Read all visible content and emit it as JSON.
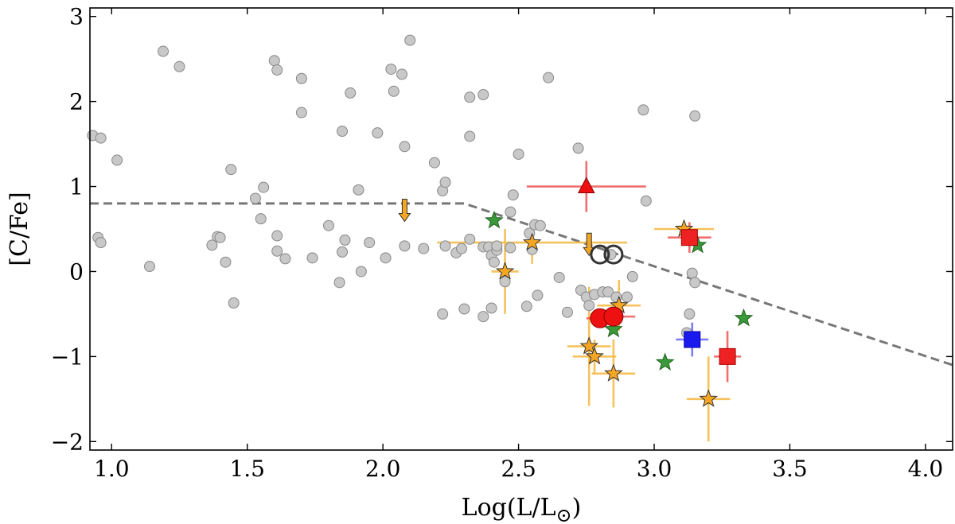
{
  "chart_data": {
    "type": "scatter",
    "title": "",
    "xlabel": "Log(L/L",
    "xlabel_sub": "⊙",
    "xlabel_close": ")",
    "ylabel": "[C/Fe]",
    "xlim": [
      0.92,
      4.1
    ],
    "ylim": [
      -2.1,
      3.1
    ],
    "grid": false,
    "x_ticks": [
      {
        "value": 1.0,
        "label": "1.0"
      },
      {
        "value": 1.5,
        "label": "1.5"
      },
      {
        "value": 2.0,
        "label": "2.0"
      },
      {
        "value": 2.5,
        "label": "2.5"
      },
      {
        "value": 3.0,
        "label": "3.0"
      },
      {
        "value": 3.5,
        "label": "3.5"
      },
      {
        "value": 4.0,
        "label": "4.0"
      }
    ],
    "y_ticks": [
      {
        "value": 3,
        "label": "3"
      },
      {
        "value": 2,
        "label": "2"
      },
      {
        "value": 1,
        "label": "1"
      },
      {
        "value": 0,
        "label": "0"
      },
      {
        "value": -1,
        "label": "−1"
      },
      {
        "value": -2,
        "label": "−2"
      }
    ],
    "boundary_line": {
      "name": "dashed-boundary",
      "points": [
        [
          0.92,
          0.8
        ],
        [
          2.3,
          0.8
        ],
        [
          4.1,
          -1.1
        ]
      ],
      "color": "#777777"
    },
    "series": [
      {
        "name": "comparison-sample",
        "marker": "circle",
        "color": "#c8c8c8",
        "edge": "#888888",
        "points": [
          [
            0.93,
            1.6
          ],
          [
            0.96,
            1.57
          ],
          [
            1.02,
            1.31
          ],
          [
            0.95,
            0.4
          ],
          [
            0.96,
            0.34
          ],
          [
            1.19,
            2.59
          ],
          [
            1.25,
            2.41
          ],
          [
            1.14,
            0.06
          ],
          [
            1.44,
            1.2
          ],
          [
            1.39,
            0.41
          ],
          [
            1.4,
            0.4
          ],
          [
            1.37,
            0.31
          ],
          [
            1.42,
            0.11
          ],
          [
            1.45,
            -0.37
          ],
          [
            1.53,
            0.86
          ],
          [
            1.56,
            0.99
          ],
          [
            1.55,
            0.62
          ],
          [
            1.6,
            2.48
          ],
          [
            1.61,
            2.37
          ],
          [
            1.61,
            0.42
          ],
          [
            1.61,
            0.24
          ],
          [
            1.64,
            0.15
          ],
          [
            1.7,
            2.27
          ],
          [
            1.7,
            1.87
          ],
          [
            1.74,
            0.16
          ],
          [
            1.8,
            0.54
          ],
          [
            1.84,
            -0.13
          ],
          [
            1.85,
            0.23
          ],
          [
            1.86,
            0.37
          ],
          [
            1.85,
            1.65
          ],
          [
            1.88,
            2.1
          ],
          [
            1.91,
            0.96
          ],
          [
            1.92,
            0.0
          ],
          [
            1.95,
            0.34
          ],
          [
            1.98,
            1.63
          ],
          [
            2.01,
            0.16
          ],
          [
            2.03,
            2.38
          ],
          [
            2.04,
            2.12
          ],
          [
            2.07,
            2.32
          ],
          [
            2.08,
            1.47
          ],
          [
            2.08,
            0.3
          ],
          [
            2.1,
            2.72
          ],
          [
            2.15,
            0.27
          ],
          [
            2.19,
            1.28
          ],
          [
            2.22,
            0.95
          ],
          [
            2.23,
            1.05
          ],
          [
            2.23,
            0.3
          ],
          [
            2.22,
            -0.5
          ],
          [
            2.27,
            0.22
          ],
          [
            2.29,
            0.27
          ],
          [
            2.32,
            2.05
          ],
          [
            2.32,
            1.59
          ],
          [
            2.32,
            0.38
          ],
          [
            2.3,
            -0.44
          ],
          [
            2.37,
            2.08
          ],
          [
            2.37,
            0.29
          ],
          [
            2.37,
            -0.53
          ],
          [
            2.39,
            0.29
          ],
          [
            2.4,
            0.19
          ],
          [
            2.4,
            -0.43
          ],
          [
            2.41,
            0.11
          ],
          [
            2.42,
            0.25
          ],
          [
            2.42,
            0.3
          ],
          [
            2.45,
            -0.12
          ],
          [
            2.47,
            0.28
          ],
          [
            2.47,
            0.7
          ],
          [
            2.48,
            0.9
          ],
          [
            2.5,
            1.38
          ],
          [
            2.53,
            -0.41
          ],
          [
            2.54,
            0.45
          ],
          [
            2.55,
            0.26
          ],
          [
            2.56,
            0.55
          ],
          [
            2.57,
            -0.28
          ],
          [
            2.58,
            0.54
          ],
          [
            2.61,
            2.28
          ],
          [
            2.65,
            -0.07
          ],
          [
            2.68,
            -0.48
          ],
          [
            2.72,
            1.45
          ],
          [
            2.73,
            -0.22
          ],
          [
            2.75,
            -0.3
          ],
          [
            2.76,
            -0.4
          ],
          [
            2.78,
            -0.27
          ],
          [
            2.81,
            -0.24
          ],
          [
            2.83,
            -0.24
          ],
          [
            2.84,
            0.2
          ],
          [
            2.86,
            -0.3
          ],
          [
            2.9,
            -0.3
          ],
          [
            2.92,
            -0.06
          ],
          [
            2.96,
            1.9
          ],
          [
            2.97,
            0.83
          ],
          [
            3.14,
            -0.02
          ],
          [
            3.15,
            -0.13
          ],
          [
            3.13,
            -0.5
          ],
          [
            3.12,
            -0.72
          ],
          [
            3.15,
            1.83
          ]
        ]
      },
      {
        "name": "green-stars",
        "marker": "star",
        "color": "#3a9a3a",
        "edge": "#1f5f1f",
        "points": [
          [
            2.41,
            0.6
          ],
          [
            2.85,
            -0.68
          ],
          [
            3.04,
            -1.07
          ],
          [
            3.16,
            0.31
          ],
          [
            3.33,
            -0.55
          ]
        ]
      },
      {
        "name": "orange-stars",
        "marker": "star",
        "color": "#f5a623",
        "edge": "#333333",
        "errcolor": "#f5b840",
        "points": [
          {
            "x": 2.45,
            "y": 0.0,
            "xerr": 0.05,
            "yerr": 0.5
          },
          {
            "x": 2.55,
            "y": 0.34,
            "xerr": 0.35,
            "yerr": 0.25
          },
          {
            "x": 2.76,
            "y": -0.88,
            "xerr": 0.08,
            "yerr": 0.7
          },
          {
            "x": 2.78,
            "y": -1.0,
            "xerr": 0.08,
            "yerr": 0.2
          },
          {
            "x": 2.85,
            "y": -1.2,
            "xerr": 0.08,
            "yerr": 0.4
          },
          {
            "x": 2.87,
            "y": -0.4,
            "xerr": 0.08,
            "yerr": 0.3
          },
          {
            "x": 3.11,
            "y": 0.5,
            "xerr": 0.11,
            "yerr": 0.1
          },
          {
            "x": 3.2,
            "y": -1.5,
            "xerr": 0.08,
            "yerr": 0.5
          }
        ]
      },
      {
        "name": "orange-upper-limits",
        "marker": "arrow-down",
        "color": "#f5a623",
        "edge": "#333333",
        "points": [
          [
            2.08,
            0.72
          ],
          [
            2.76,
            0.32
          ]
        ]
      },
      {
        "name": "red-squares",
        "marker": "square",
        "color": "#ee2222",
        "edge": "#aa0000",
        "errcolor": "#ee5555",
        "points": [
          {
            "x": 3.13,
            "y": 0.4,
            "xerr": 0.08,
            "yerr": 0.18
          },
          {
            "x": 3.27,
            "y": -1.0,
            "xerr": 0.05,
            "yerr": 0.3
          }
        ]
      },
      {
        "name": "blue-square",
        "marker": "square",
        "color": "#1a1aee",
        "edge": "#0000aa",
        "errcolor": "#6666ff",
        "points": [
          {
            "x": 3.14,
            "y": -0.8,
            "xerr": 0.06,
            "yerr": 0.2
          }
        ]
      },
      {
        "name": "red-triangle",
        "marker": "triangle",
        "color": "#ee1111",
        "edge": "#880000",
        "errcolor": "#ee5555",
        "points": [
          {
            "x": 2.75,
            "y": 1.0,
            "xerr": 0.22,
            "yerr": 0.3
          }
        ]
      },
      {
        "name": "red-circles",
        "marker": "big-circle",
        "color": "#ee1111",
        "edge": "#880000",
        "errcolor": "#ee5555",
        "points": [
          {
            "x": 2.8,
            "y": -0.55,
            "xerr": 0.05,
            "yerr": 0.1
          },
          {
            "x": 2.85,
            "y": -0.53,
            "xerr": 0.08,
            "yerr": 0.1
          }
        ]
      },
      {
        "name": "open-circles",
        "marker": "open-circle",
        "color": "none",
        "edge": "#333333",
        "points": [
          [
            2.8,
            0.2
          ],
          [
            2.85,
            0.2
          ]
        ]
      }
    ]
  }
}
